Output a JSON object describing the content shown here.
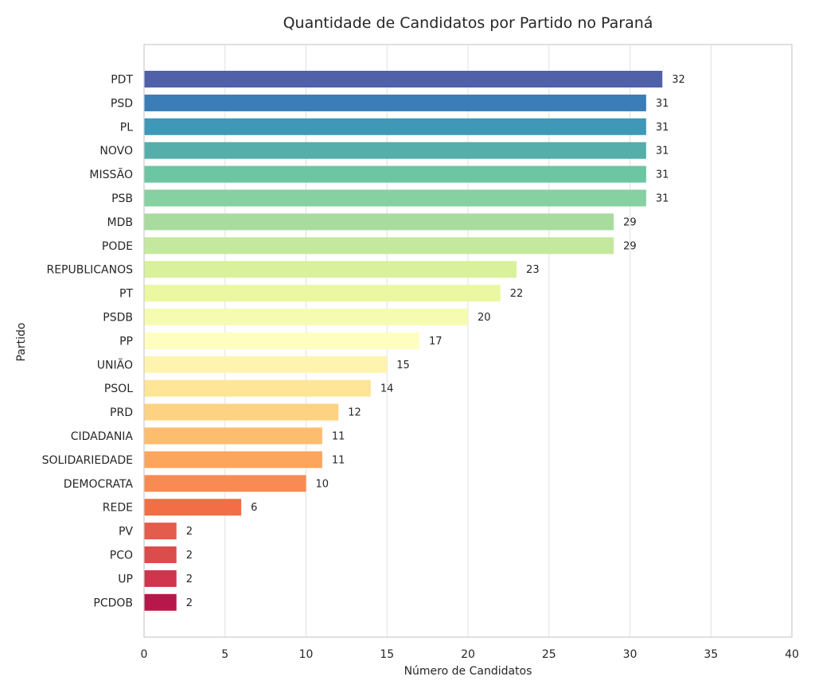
{
  "chart_data": {
    "type": "bar",
    "orientation": "horizontal",
    "title": "Quantidade de Candidatos por Partido no Paraná",
    "xlabel": "Número de Candidatos",
    "ylabel": "Partido",
    "xlim": [
      0,
      40
    ],
    "xticks": [
      "0",
      "5",
      "10",
      "15",
      "20",
      "25",
      "30",
      "35",
      "40"
    ],
    "grid": "vertical",
    "categories": [
      "PDT",
      "PSD",
      "PL",
      "NOVO",
      "MISSÃO",
      "PSB",
      "MDB",
      "PODE",
      "REPUBLICANOS",
      "PT",
      "PSDB",
      "PP",
      "UNIÃO",
      "PSOL",
      "PRD",
      "CIDADANIA",
      "SOLIDARIEDADE",
      "DEMOCRATA",
      "REDE",
      "PV",
      "PCO",
      "UP",
      "PCDOB"
    ],
    "values": [
      32,
      31,
      31,
      31,
      31,
      31,
      29,
      29,
      23,
      22,
      20,
      17,
      15,
      14,
      12,
      11,
      11,
      10,
      6,
      2,
      2,
      2,
      2
    ],
    "colors": [
      "#5061aa",
      "#3a7db7",
      "#3f98b8",
      "#56aeab",
      "#6cc5a3",
      "#86d0a2",
      "#a8dc9f",
      "#c4e89d",
      "#daf19c",
      "#ebf7a1",
      "#f6fbb2",
      "#fefec0",
      "#fef4af",
      "#fee597",
      "#fed283",
      "#fdbd6f",
      "#fca55d",
      "#f88b52",
      "#f36e44",
      "#e35c4c",
      "#db4c4d",
      "#cf354c",
      "#b8174b"
    ]
  }
}
